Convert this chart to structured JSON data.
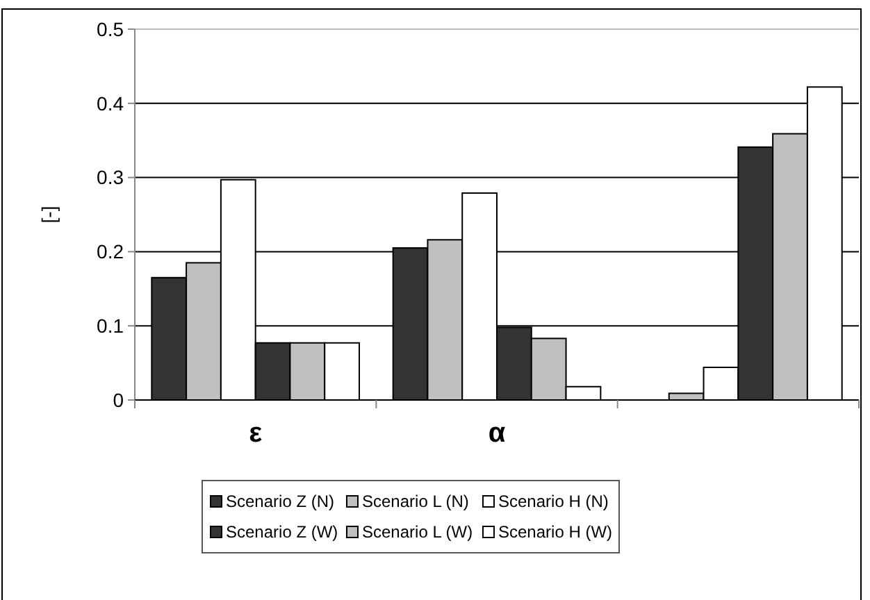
{
  "chart_data": {
    "type": "bar",
    "ylabel": "[-]",
    "categories": [
      "ε",
      "α",
      null
    ],
    "series": [
      {
        "name": "Scenario Z (N)",
        "color": "#333333",
        "values": [
          0.165,
          0.205,
          null
        ]
      },
      {
        "name": "Scenario L (N)",
        "color": "#c0c0c0",
        "values": [
          0.185,
          0.216,
          0.009
        ]
      },
      {
        "name": "Scenario H (N)",
        "color": "#ffffff",
        "values": [
          0.297,
          0.279,
          0.044
        ]
      },
      {
        "name": "Scenario Z (W)",
        "color": "#333333",
        "values": [
          0.077,
          0.098,
          0.341
        ]
      },
      {
        "name": "Scenario L (W)",
        "color": "#c0c0c0",
        "values": [
          0.077,
          0.083,
          0.359
        ]
      },
      {
        "name": "Scenario H (W)",
        "color": "#ffffff",
        "values": [
          0.077,
          0.018,
          0.422
        ]
      }
    ],
    "ylim": [
      0,
      0.5
    ],
    "yticks": [
      0,
      0.1,
      0.2,
      0.3,
      0.4,
      0.5
    ],
    "grid": "y",
    "legend": "bottom"
  }
}
